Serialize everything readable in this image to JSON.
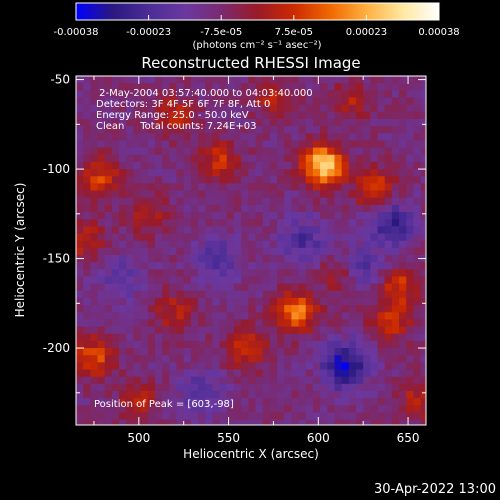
{
  "colors": {
    "background": "#000000",
    "foreground": "#ffffff"
  },
  "colorbar": {
    "tick_labels": [
      "-0.00038",
      "-0.00023",
      "-7.5e-05",
      "7.5e-05",
      "0.00023",
      "0.00038"
    ],
    "range": [
      -0.00038,
      0.00038
    ],
    "unit_label": "(photons cm⁻² s⁻¹ asec⁻²)",
    "colormap": [
      "#0000ff",
      "#2a1880",
      "#4c2c96",
      "#6a38a0",
      "#7a2a70",
      "#9a1a28",
      "#cc2a00",
      "#f06800",
      "#ffb040",
      "#ffe8a0",
      "#ffffff"
    ]
  },
  "chart_data": {
    "type": "heatmap",
    "title": "Reconstructed RHESSI Image",
    "xlabel": "Heliocentric X (arcsec)",
    "ylabel": "Heliocentric Y (arcsec)",
    "xlim": [
      465,
      660
    ],
    "ylim": [
      -243,
      -48
    ],
    "x_ticks": [
      500,
      550,
      600,
      650
    ],
    "y_ticks": [
      -50,
      -100,
      -150,
      -200
    ],
    "info_lines": [
      " 2-May-2004 03:57:40.000 to 04:03:40.000",
      "Detectors: 3F 4F 5F 6F 7F 8F, Att 0",
      "Energy Range: 25.0 - 50.0 keV",
      "Clean     Total counts: 7.24E+03"
    ],
    "peak_label": "Position of Peak = [603,-98]",
    "peak_position": [
      603,
      -98
    ],
    "grid_step_arcsec": 4,
    "hotspots": [
      {
        "x": 603,
        "y": -98,
        "v": 0.00038
      },
      {
        "x": 588,
        "y": -180,
        "v": 0.00026
      },
      {
        "x": 632,
        "y": -112,
        "v": 0.0002
      },
      {
        "x": 478,
        "y": -105,
        "v": 0.00018
      },
      {
        "x": 545,
        "y": -95,
        "v": 0.00016
      },
      {
        "x": 475,
        "y": -205,
        "v": 0.0002
      },
      {
        "x": 560,
        "y": -200,
        "v": 0.00018
      },
      {
        "x": 645,
        "y": -165,
        "v": 0.00017
      },
      {
        "x": 640,
        "y": -185,
        "v": 0.00017
      },
      {
        "x": 520,
        "y": -70,
        "v": 0.00014
      },
      {
        "x": 575,
        "y": -60,
        "v": 0.00013
      },
      {
        "x": 505,
        "y": -125,
        "v": 0.00012
      },
      {
        "x": 520,
        "y": -180,
        "v": 0.00013
      },
      {
        "x": 500,
        "y": -230,
        "v": 0.00013
      },
      {
        "x": 618,
        "y": -62,
        "v": 0.00012
      },
      {
        "x": 655,
        "y": -230,
        "v": 0.00013
      },
      {
        "x": 612,
        "y": -160,
        "v": 0.00011
      },
      {
        "x": 470,
        "y": -140,
        "v": 0.00014
      }
    ],
    "coldspots": [
      {
        "x": 615,
        "y": -210,
        "v": -0.00025
      },
      {
        "x": 640,
        "y": -130,
        "v": -0.0002
      },
      {
        "x": 592,
        "y": -140,
        "v": -0.00014
      },
      {
        "x": 545,
        "y": -150,
        "v": -0.00012
      },
      {
        "x": 625,
        "y": -155,
        "v": -0.00013
      },
      {
        "x": 535,
        "y": -225,
        "v": -0.00012
      },
      {
        "x": 490,
        "y": -160,
        "v": -0.0001
      }
    ]
  },
  "footer": {
    "date": "30-Apr-2022 13:00"
  }
}
